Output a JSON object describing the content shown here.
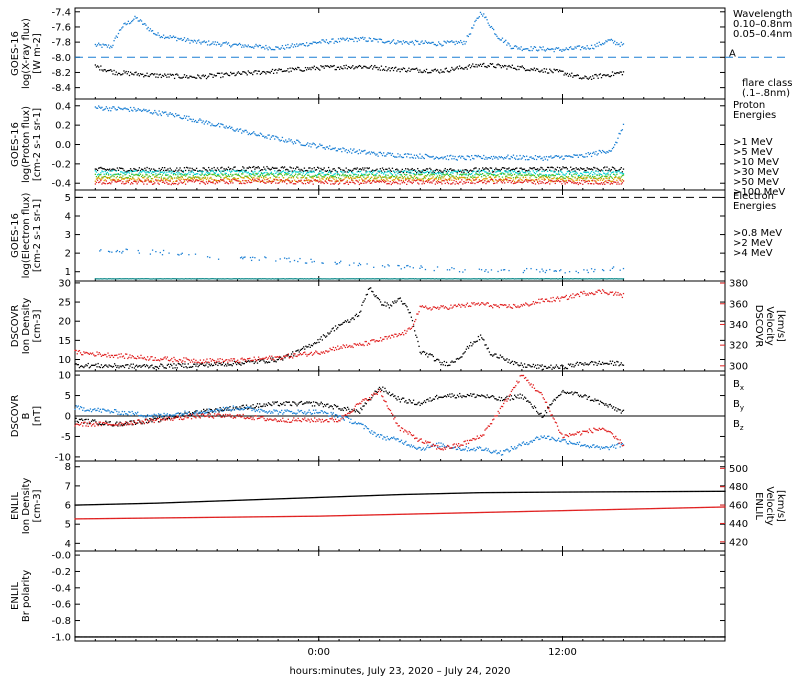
{
  "chart_data": [
    {
      "type": "scatter",
      "ylabel": [
        "GOES-16",
        "log(X-ray flux)",
        "[W m-2]"
      ],
      "ylim": [
        -8.55,
        -7.35
      ],
      "yticks": [
        "-7.4",
        "-7.6",
        "-7.8",
        "-8.0",
        "-8.2",
        "-8.4"
      ],
      "yticks_values": [
        -7.4,
        -7.6,
        -7.8,
        -8.0,
        -8.2,
        -8.4
      ],
      "reference_line": {
        "y": -8.0,
        "label": "A",
        "color": "#1a7fd4"
      },
      "legend": [
        {
          "text": "Wavelength",
          "color": "#000000"
        },
        {
          "text": "0.10–0.8nm",
          "color": "#1a7fd4"
        },
        {
          "text": "0.05–0.4nm",
          "color": "#000000"
        }
      ],
      "legend2": [
        {
          "text": "flare class",
          "color": "#1a7fd4"
        },
        {
          "text": "(.1–.8nm)",
          "color": "#1a7fd4"
        }
      ],
      "series": [
        {
          "color": "#1a7fd4",
          "x": [
            -11,
            -10.2,
            -9.7,
            -9,
            -8,
            -6,
            -4,
            -2,
            0,
            2,
            4,
            6,
            7.2,
            8,
            8.8,
            9.5,
            10,
            12,
            13.5,
            14.3,
            15
          ],
          "values": [
            -7.84,
            -7.86,
            -7.6,
            -7.48,
            -7.7,
            -7.8,
            -7.84,
            -7.88,
            -7.8,
            -7.76,
            -7.8,
            -7.82,
            -7.8,
            -7.4,
            -7.72,
            -7.86,
            -7.88,
            -7.9,
            -7.86,
            -7.78,
            -7.84
          ]
        },
        {
          "color": "#000000",
          "x": [
            -11,
            -10,
            -8,
            -6,
            -4,
            -2,
            0,
            2,
            4,
            6,
            8,
            10,
            12,
            13,
            14,
            15
          ],
          "values": [
            -8.12,
            -8.2,
            -8.24,
            -8.26,
            -8.22,
            -8.18,
            -8.14,
            -8.12,
            -8.16,
            -8.18,
            -8.1,
            -8.14,
            -8.2,
            -8.28,
            -8.24,
            -8.2
          ]
        }
      ]
    },
    {
      "type": "scatter",
      "ylabel": [
        "GOES-16",
        "log(Proton flux)",
        "[cm-2 s-1 sr-1]"
      ],
      "ylim": [
        -0.47,
        0.47
      ],
      "yticks": [
        "0.4",
        "0.2",
        "0.0",
        "-0.2",
        "-0.4"
      ],
      "yticks_values": [
        0.4,
        0.2,
        0.0,
        -0.2,
        -0.4
      ],
      "legend": [
        {
          "text": "Proton",
          "color": "#000000"
        },
        {
          "text": "Energies",
          "color": "#000000"
        },
        {
          "text": ">1 MeV",
          "color": "#1a7fd4"
        },
        {
          "text": ">5 MeV",
          "color": "#000000"
        },
        {
          "text": ">10 MeV",
          "color": "#00d0d0"
        },
        {
          "text": ">30 MeV",
          "color": "#50c020"
        },
        {
          "text": ">50 MeV",
          "color": "#e0a000"
        },
        {
          "text": ">100 MeV",
          "color": "#e02020"
        }
      ],
      "series": [
        {
          "color": "#1a7fd4",
          "x": [
            -11,
            -9,
            -7,
            -5,
            -3,
            -1,
            1,
            3,
            5,
            7,
            9,
            11,
            13,
            14.5,
            15
          ],
          "values": [
            0.38,
            0.36,
            0.3,
            0.2,
            0.1,
            0.02,
            -0.05,
            -0.1,
            -0.12,
            -0.14,
            -0.13,
            -0.14,
            -0.12,
            -0.05,
            0.2
          ]
        },
        {
          "color": "#000000",
          "x": [
            -11,
            -7,
            -3,
            1,
            5,
            9,
            13,
            15
          ],
          "values": [
            -0.26,
            -0.26,
            -0.25,
            -0.26,
            -0.27,
            -0.26,
            -0.25,
            -0.26
          ]
        },
        {
          "color": "#00d0d0",
          "x": [
            -11,
            -7,
            -3,
            1,
            5,
            9,
            13,
            15
          ],
          "values": [
            -0.29,
            -0.29,
            -0.29,
            -0.3,
            -0.29,
            -0.29,
            -0.3,
            -0.29
          ]
        },
        {
          "color": "#50c020",
          "x": [
            -11,
            -7,
            -3,
            1,
            5,
            9,
            13,
            15
          ],
          "values": [
            -0.33,
            -0.33,
            -0.32,
            -0.33,
            -0.33,
            -0.32,
            -0.33,
            -0.33
          ]
        },
        {
          "color": "#e0a000",
          "x": [
            -11,
            -7,
            -3,
            1,
            5,
            9,
            13,
            15
          ],
          "values": [
            -0.36,
            -0.36,
            -0.36,
            -0.36,
            -0.35,
            -0.36,
            -0.36,
            -0.36
          ]
        },
        {
          "color": "#e02020",
          "x": [
            -11,
            -7,
            -3,
            1,
            5,
            9,
            13,
            15
          ],
          "values": [
            -0.39,
            -0.39,
            -0.38,
            -0.39,
            -0.39,
            -0.38,
            -0.39,
            -0.39
          ]
        }
      ]
    },
    {
      "type": "scatter",
      "ylabel": [
        "GOES-16",
        "log(Electron flux)",
        "[cm-2 s-1 sr-1]"
      ],
      "ylim": [
        0.5,
        5.4
      ],
      "yticks": [
        "5",
        "4",
        "3",
        "2",
        "1"
      ],
      "yticks_values": [
        5,
        4,
        3,
        2,
        1
      ],
      "reference_line": {
        "y": 5.0,
        "dashed": true,
        "color": "#000000"
      },
      "legend": [
        {
          "text": "Electron",
          "color": "#000000"
        },
        {
          "text": "Energies",
          "color": "#000000"
        },
        {
          "text": ">0.8 MeV",
          "color": "#000000"
        },
        {
          "text": ">2 MeV",
          "color": "#1a7fd4"
        },
        {
          "text": ">4 MeV",
          "color": "#d020d0"
        }
      ],
      "series": [
        {
          "color": "#1a7fd4",
          "x": [
            -11,
            -9,
            -7,
            -5,
            -3,
            -1,
            1,
            3,
            5,
            7,
            9,
            11,
            13,
            15
          ],
          "values": [
            2.2,
            2.1,
            2.0,
            1.8,
            1.7,
            1.6,
            1.5,
            1.3,
            1.2,
            1.1,
            1.1,
            1.05,
            1.0,
            1.2
          ]
        },
        {
          "color": "#1a9090",
          "x": [
            -11,
            -5,
            0,
            5,
            10,
            15
          ],
          "values": [
            0.62,
            0.62,
            0.62,
            0.62,
            0.62,
            0.62
          ]
        }
      ]
    },
    {
      "type": "line",
      "ylabel": [
        "DSCOVR",
        "Ion Density",
        "[cm-3]"
      ],
      "ylim": [
        7,
        30.5
      ],
      "yticks": [
        "30",
        "25",
        "20",
        "15",
        "10"
      ],
      "yticks_values": [
        30,
        25,
        20,
        15,
        10
      ],
      "ylabel_right": [
        "DSCOVR",
        "Velocity",
        "[km/s]"
      ],
      "ylim_right": [
        295,
        382
      ],
      "yticks_right": [
        "380",
        "360",
        "340",
        "320",
        "300"
      ],
      "yticks_right_values": [
        380,
        360,
        340,
        320,
        300
      ],
      "series": [
        {
          "color": "#000000",
          "axis": "left",
          "x": [
            -12,
            -10,
            -8,
            -6,
            -4,
            -2,
            -1,
            0,
            0.5,
            1,
            1.5,
            2,
            2.5,
            3,
            3.5,
            4,
            4.5,
            5,
            5.5,
            6,
            6.5,
            7,
            7.5,
            8,
            8.5,
            9,
            9.5,
            10,
            11,
            12,
            13,
            14,
            15
          ],
          "values": [
            8.5,
            8.3,
            8.2,
            8.5,
            9,
            10,
            12,
            15,
            17,
            19,
            20,
            22,
            29,
            25,
            24,
            26,
            22,
            12,
            11,
            9,
            9,
            11,
            14,
            16,
            11,
            11,
            9,
            8.5,
            8,
            8,
            9,
            9,
            9
          ]
        },
        {
          "color": "#e02020",
          "axis": "right",
          "x": [
            -12,
            -10,
            -8,
            -6,
            -4,
            -2,
            0,
            1,
            2,
            3,
            4,
            4.5,
            5,
            6,
            7,
            8,
            9,
            10,
            11,
            12,
            13,
            14,
            15
          ],
          "values": [
            313,
            310,
            307,
            305,
            305,
            308,
            313,
            318,
            320,
            325,
            330,
            335,
            356,
            356,
            358,
            360,
            357,
            358,
            363,
            365,
            370,
            372,
            368
          ]
        }
      ]
    },
    {
      "type": "line",
      "ylabel": [
        "DSCOVR",
        "B",
        "[nT]"
      ],
      "ylim": [
        -11,
        11
      ],
      "yticks": [
        "10",
        "5",
        "0",
        "-5",
        "-10"
      ],
      "yticks_values": [
        10,
        5,
        0,
        -5,
        -10
      ],
      "zero_line": true,
      "legend": [
        {
          "text": "Bx",
          "color": "#000000"
        },
        {
          "text": "By",
          "color": "#1a7fd4"
        },
        {
          "text": "Bz",
          "color": "#e02020"
        }
      ],
      "series": [
        {
          "color": "#000000",
          "x": [
            -12,
            -10,
            -8,
            -6,
            -4,
            -2,
            0,
            1,
            2,
            3,
            4,
            5,
            6,
            7,
            8,
            9,
            10,
            11,
            12,
            13,
            14,
            15
          ],
          "values": [
            -1,
            -2,
            -1,
            1,
            2,
            3,
            3,
            2,
            1,
            7,
            4,
            3,
            5,
            5,
            5,
            4,
            5,
            0,
            6,
            5,
            3,
            1
          ]
        },
        {
          "color": "#1a7fd4",
          "x": [
            -12,
            -10,
            -8,
            -6,
            -4,
            -2,
            0,
            1,
            2,
            3,
            4,
            5,
            6,
            7,
            8,
            9,
            10,
            11,
            12,
            13,
            14,
            15
          ],
          "values": [
            2,
            1,
            0,
            1,
            2,
            1,
            1,
            0,
            -2,
            -5,
            -6,
            -8,
            -7,
            -8,
            -8,
            -9,
            -7,
            -5,
            -6,
            -7,
            -8,
            -7
          ]
        },
        {
          "color": "#e02020",
          "x": [
            -12,
            -10,
            -8,
            -6,
            -4,
            -2,
            0,
            1,
            2,
            3,
            4,
            5,
            6,
            7,
            8,
            9,
            10,
            11,
            12,
            13,
            14,
            15
          ],
          "values": [
            -2,
            -2,
            -1,
            0,
            0,
            -1,
            -1,
            -1,
            3,
            6,
            -3,
            -6,
            -8,
            -7,
            -5,
            2,
            10,
            5,
            -5,
            -4,
            -3,
            -7
          ]
        }
      ]
    },
    {
      "type": "line",
      "ylabel": [
        "ENLIL",
        "Ion Density",
        "[cm-3]"
      ],
      "ylim": [
        3.6,
        8.3
      ],
      "yticks": [
        "8",
        "7",
        "6",
        "5",
        "4"
      ],
      "yticks_values": [
        8,
        7,
        6,
        5,
        4
      ],
      "ylabel_right": [
        "ENLIL",
        "Velocity",
        "[km/s]"
      ],
      "ylim_right": [
        410,
        508
      ],
      "yticks_right": [
        "500",
        "480",
        "460",
        "440",
        "420"
      ],
      "yticks_right_values": [
        500,
        480,
        460,
        440,
        420
      ],
      "series": [
        {
          "color": "#000000",
          "axis": "left",
          "x": [
            -12,
            -8,
            -4,
            0,
            4,
            8,
            12,
            16,
            20
          ],
          "values": [
            6.0,
            6.1,
            6.25,
            6.4,
            6.55,
            6.65,
            6.68,
            6.7,
            6.72
          ]
        },
        {
          "color": "#e02020",
          "axis": "right",
          "x": [
            -12,
            -8,
            -4,
            0,
            4,
            8,
            12,
            16,
            20
          ],
          "values": [
            445,
            446,
            447,
            448,
            450,
            452,
            454,
            456,
            458
          ]
        }
      ]
    },
    {
      "type": "line",
      "ylabel": [
        "ENLIL",
        "Br polarity"
      ],
      "ylim": [
        -1.05,
        0.05
      ],
      "yticks": [
        "-0.0",
        "-0.2",
        "-0.4",
        "-0.6",
        "-0.8",
        "-1.0"
      ],
      "yticks_values": [
        0,
        -0.2,
        -0.4,
        -0.6,
        -0.8,
        -1.0
      ],
      "series": [
        {
          "color": "#000000",
          "x": [
            -12,
            20
          ],
          "values": [
            -1.0,
            -1.0
          ]
        }
      ]
    }
  ],
  "x_axis": {
    "range_hours": [
      -12,
      20
    ],
    "ticks": [
      {
        "hour": 0,
        "label": "0:00"
      },
      {
        "hour": 12,
        "label": "12:00"
      }
    ],
    "label": "hours:minutes, July 23, 2020 – July 24, 2020"
  }
}
